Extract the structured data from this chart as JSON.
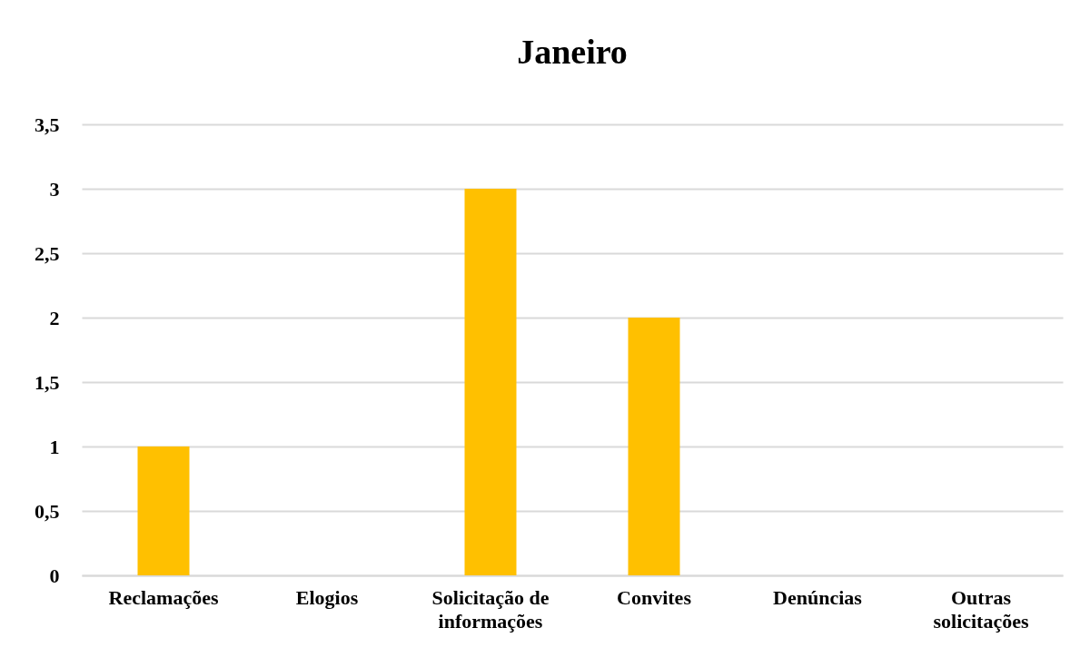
{
  "chart_data": {
    "type": "bar",
    "title": "Janeiro",
    "categories": [
      "Reclamações",
      "Elogios",
      "Solicitação de informações",
      "Convites",
      "Denúncias",
      "Outras solicitações"
    ],
    "values": [
      1,
      0,
      3,
      2,
      0,
      0
    ],
    "color": "#ffc000",
    "ylim": [
      0,
      3.5
    ],
    "yticks": [
      0,
      {
        "value": 0.5,
        "label": "0,5"
      },
      1,
      {
        "value": 1.5,
        "label": "1,5"
      },
      2,
      {
        "value": 2.5,
        "label": "2,5"
      },
      3,
      {
        "value": 3.5,
        "label": "3,5"
      }
    ],
    "grid": "y"
  }
}
